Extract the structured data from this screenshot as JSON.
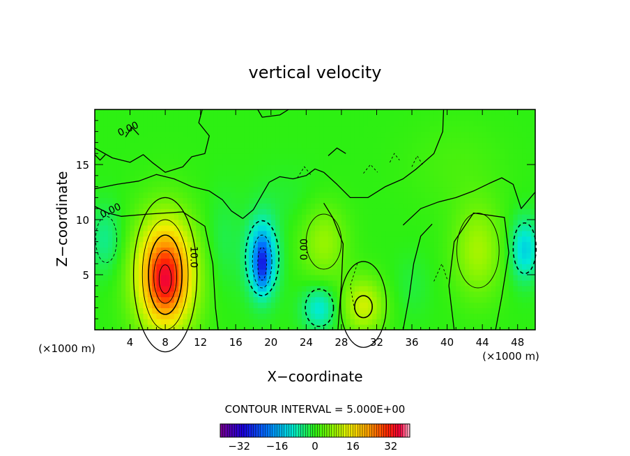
{
  "chart_data": {
    "type": "heatmap",
    "title": "vertical velocity",
    "xlabel": "X−coordinate",
    "ylabel": "Z−coordinate",
    "x_unit_label": "(×1000 m)",
    "y_unit_label": "(×1000 m)",
    "xlim": [
      0,
      50
    ],
    "ylim": [
      0,
      20
    ],
    "x_ticks": [
      4,
      8,
      12,
      16,
      20,
      24,
      28,
      32,
      36,
      40,
      44,
      48
    ],
    "y_ticks": [
      5,
      10,
      15
    ],
    "contour_interval_text": "CONTOUR INTERVAL = 5.000E+00",
    "contour_labels": [
      {
        "text": "0.00",
        "x": 3.8,
        "y": 18.2
      },
      {
        "text": "0.00",
        "x": 1.8,
        "y": 10.8
      },
      {
        "text": "10.0",
        "x": 11.2,
        "y": 6.6
      },
      {
        "text": "0.00",
        "x": 23.8,
        "y": 7.3
      }
    ],
    "features": [
      {
        "kind": "updraft",
        "x": 8,
        "z": 5.0,
        "peak": 30
      },
      {
        "kind": "downdraft",
        "x": 19,
        "z": 6.5,
        "peak": -28
      },
      {
        "kind": "updraft",
        "x": 30.5,
        "z": 2.2,
        "peak": 12
      },
      {
        "kind": "downdraft",
        "x": 25.5,
        "z": 2.0,
        "peak": -10
      },
      {
        "kind": "updraft",
        "x": 43.5,
        "z": 7.2,
        "peak": 9
      },
      {
        "kind": "updraft",
        "x": 26,
        "z": 8.0,
        "peak": 8
      },
      {
        "kind": "downdraft",
        "x": 48.5,
        "z": 7.5,
        "peak": -12
      },
      {
        "kind": "downdraft",
        "x": 1.5,
        "z": 8.0,
        "peak": -6
      }
    ],
    "colorbar": {
      "min": -40,
      "max": 40,
      "tick_values": [
        -32,
        -16,
        0,
        16,
        32
      ],
      "tick_labels": [
        "−32",
        "−16",
        "0",
        "16",
        "32"
      ]
    }
  }
}
